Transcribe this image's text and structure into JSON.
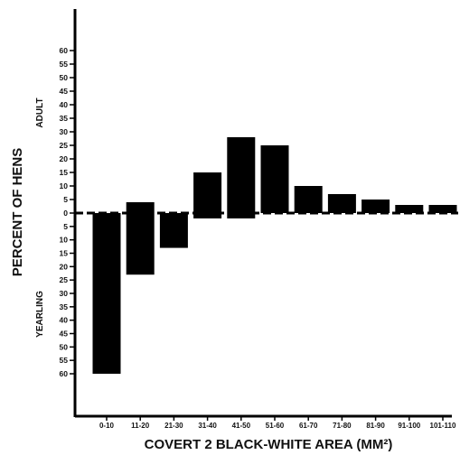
{
  "chart_data": {
    "type": "bar",
    "title": "",
    "xlabel": "COVERT 2 BLACK-WHITE AREA (MM²)",
    "ylabel": "PERCENT OF HENS",
    "upper_label": "ADULT",
    "lower_label": "YEARLING",
    "categories": [
      "0-10",
      "11-20",
      "21-30",
      "31-40",
      "41-50",
      "51-60",
      "61-70",
      "71-80",
      "81-90",
      "91-100",
      "101-110"
    ],
    "series": [
      {
        "name": "ADULT",
        "values": [
          0,
          4,
          0,
          15,
          28,
          25,
          10,
          7,
          5,
          3,
          3
        ]
      },
      {
        "name": "YEARLING",
        "values": [
          60,
          23,
          13,
          2,
          2,
          0,
          0,
          0,
          0,
          0,
          0
        ]
      }
    ],
    "y_ticks_upper": [
      60,
      55,
      50,
      45,
      40,
      35,
      30,
      25,
      20,
      15,
      10,
      5
    ],
    "y_ticks_zero": 0,
    "y_ticks_lower": [
      5,
      10,
      15,
      20,
      25,
      30,
      35,
      40,
      45,
      50,
      55,
      60
    ],
    "ylim_upper": [
      0,
      60
    ],
    "ylim_lower": [
      0,
      60
    ],
    "grid": false,
    "legend": "none",
    "colors": {
      "bars": "#000000",
      "axis": "#000000",
      "baseline": "#000000"
    }
  }
}
